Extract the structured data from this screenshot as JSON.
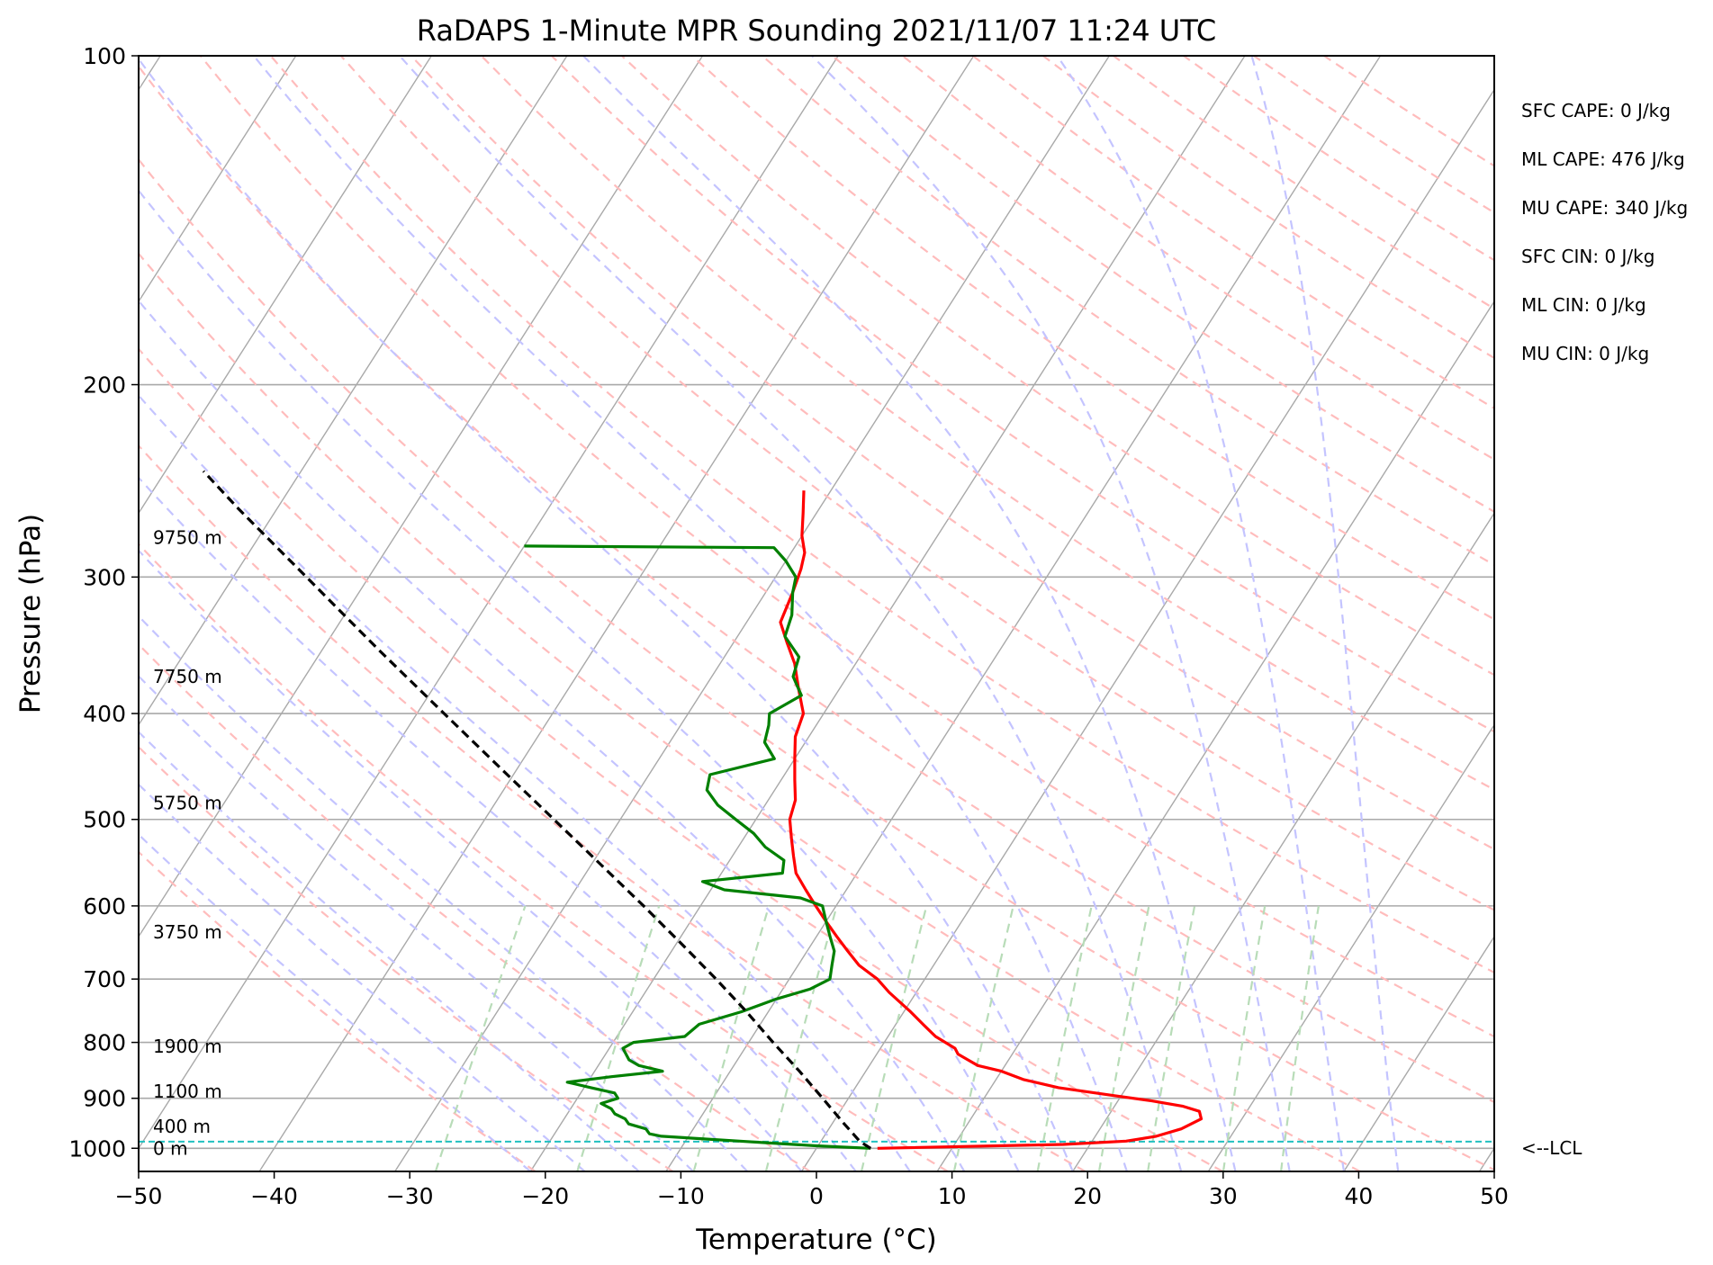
{
  "chart_data": {
    "type": "line",
    "title": "RaDAPS 1-Minute MPR Sounding 2021/11/07 11:24 UTC",
    "xlabel": "Temperature (°C)",
    "ylabel": "Pressure (hPa)",
    "xlim": [
      -50,
      50
    ],
    "ylim": [
      1050,
      100
    ],
    "y_scale": "log",
    "grid": true,
    "x_ticks": [
      -50,
      -40,
      -30,
      -20,
      -10,
      0,
      10,
      20,
      30,
      40,
      50
    ],
    "x_tick_labels": [
      "−50",
      "−40",
      "−30",
      "−20",
      "−10",
      "0",
      "10",
      "20",
      "30",
      "40",
      "50"
    ],
    "y_ticks": [
      100,
      200,
      300,
      400,
      500,
      600,
      700,
      800,
      900,
      1000
    ],
    "y_tick_labels": [
      "100",
      "200",
      "300",
      "400",
      "500",
      "600",
      "700",
      "800",
      "900",
      "1000"
    ],
    "series": [
      {
        "color": "#ff0000",
        "pressure": [
          1000,
          992,
          985,
          975,
          960,
          940,
          925,
          915,
          905,
          895,
          880,
          865,
          850,
          840,
          830,
          820,
          810,
          790,
          770,
          750,
          720,
          700,
          680,
          660,
          640,
          620,
          600,
          580,
          560,
          540,
          520,
          500,
          480,
          460,
          440,
          420,
          400,
          380,
          360,
          345,
          330,
          310,
          295,
          285,
          275,
          262,
          250
        ],
        "temperature": [
          4.5,
          18.0,
          22.5,
          24.5,
          26.0,
          27.0,
          26.5,
          25.0,
          22.5,
          19.5,
          15.0,
          12.0,
          10.0,
          8.0,
          7.0,
          6.0,
          5.5,
          3.5,
          2.0,
          0.5,
          -2.0,
          -3.5,
          -5.5,
          -7.0,
          -8.5,
          -10.0,
          -11.5,
          -13.0,
          -14.5,
          -15.5,
          -16.5,
          -17.5,
          -18.0,
          -19.0,
          -20.0,
          -21.0,
          -21.5,
          -23.0,
          -24.5,
          -26.0,
          -27.5,
          -28.0,
          -28.5,
          -29.0,
          -30.0,
          -31.0,
          -32.0
        ]
      },
      {
        "color": "#008000",
        "pressure": [
          1000,
          995,
          990,
          985,
          980,
          975,
          970,
          960,
          950,
          940,
          930,
          920,
          910,
          900,
          890,
          880,
          870,
          860,
          850,
          840,
          830,
          810,
          800,
          790,
          770,
          750,
          730,
          715,
          700,
          680,
          660,
          640,
          620,
          600,
          590,
          580,
          570,
          560,
          545,
          530,
          515,
          500,
          485,
          470,
          455,
          440,
          425,
          410,
          400,
          385,
          370,
          355,
          340,
          325,
          310,
          300,
          290,
          282,
          281
        ],
        "temperature": [
          4.0,
          0.0,
          -3.0,
          -6.0,
          -9.0,
          -12.0,
          -13.0,
          -13.5,
          -15.0,
          -15.5,
          -16.5,
          -17.0,
          -18.0,
          -17.0,
          -17.5,
          -19.5,
          -21.5,
          -18.5,
          -15.0,
          -17.0,
          -18.0,
          -19.0,
          -18.5,
          -15.0,
          -14.5,
          -12.0,
          -10.0,
          -8.0,
          -7.0,
          -7.5,
          -8.0,
          -9.0,
          -10.0,
          -11.0,
          -13.0,
          -19.0,
          -21.0,
          -15.5,
          -16.0,
          -18.0,
          -19.5,
          -21.5,
          -23.5,
          -25.0,
          -25.5,
          -21.5,
          -23.0,
          -23.5,
          -24.0,
          -22.5,
          -24.0,
          -24.5,
          -26.5,
          -27.0,
          -28.0,
          -28.5,
          -30.0,
          -31.5,
          -50.0
        ]
      },
      {
        "color": "#000000",
        "dashed": true,
        "pressure": [
          1000,
          986,
          950,
          900,
          850,
          800,
          750,
          700,
          650,
          600,
          550,
          500,
          450,
          400,
          350,
          300,
          260,
          240
        ],
        "temperature": [
          4.0,
          2.9,
          0.9,
          -1.9,
          -4.9,
          -8.2,
          -11.6,
          -15.4,
          -19.6,
          -24.2,
          -29.3,
          -34.9,
          -41.1,
          -48.0,
          -55.8,
          -64.6,
          -72.8,
          -77.2
        ]
      }
    ],
    "lcl_pressure": 986,
    "lcl_label": "<--LCL",
    "height_labels": [
      {
        "text": "0 m",
        "pressure": 1000
      },
      {
        "text": "400 m",
        "pressure": 955
      },
      {
        "text": "1100 m",
        "pressure": 887
      },
      {
        "text": "1900 m",
        "pressure": 807
      },
      {
        "text": "3750 m",
        "pressure": 634
      },
      {
        "text": "5750 m",
        "pressure": 483
      },
      {
        "text": "7750 m",
        "pressure": 370
      },
      {
        "text": "9750 m",
        "pressure": 276
      }
    ],
    "stats": [
      "SFC CAPE: 0 J/kg",
      "ML CAPE: 476 J/kg",
      "MU CAPE: 340 J/kg",
      "SFC CIN: 0 J/kg",
      "ML CIN: 0 J/kg",
      "MU CIN: 0 J/kg"
    ],
    "colors": {
      "isotherms": "#a9a9a9",
      "isobars": "#a9a9a9",
      "dry_adiabats": "#ffbcbc",
      "moist_adiabats": "#c4c4ff",
      "mixing_ratio": "#b8dcb8",
      "lcl_line": "#20c0c0",
      "temperature": "#ff0000",
      "dewpoint": "#008000",
      "parcel": "#000000"
    }
  }
}
